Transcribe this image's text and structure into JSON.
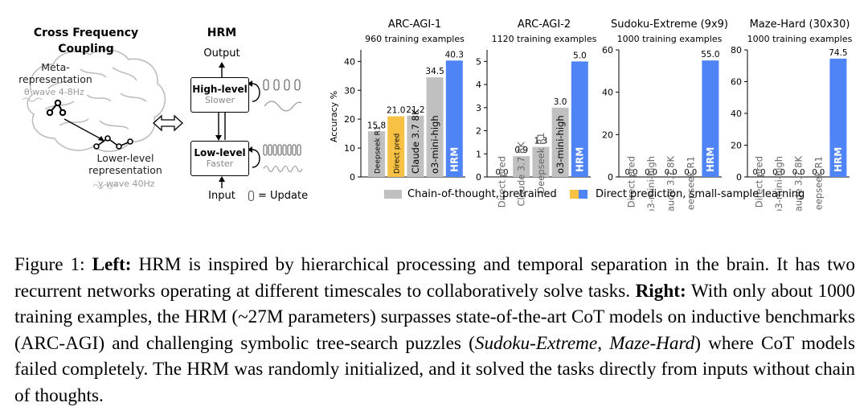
{
  "left_panel": {
    "cfc_title_line1": "Cross Frequency",
    "cfc_title_line2": "Coupling",
    "meta_line1": "Meta-",
    "meta_line2": "representation",
    "theta_label": "θ wave 4-8Hz",
    "lower_line1": "Lower-level",
    "lower_line2": "representation",
    "gamma_label": "γ wave 40Hz",
    "hrm_title": "HRM",
    "output_label": "Output",
    "input_label": "Input",
    "high_title": "High-level",
    "high_sub": "Slower",
    "low_title": "Low-level",
    "low_sub": "Faster",
    "update_legend": "= Update"
  },
  "colors": {
    "cot_gray": "#c0c0c0",
    "direct_gold": "#f7c244",
    "hrm_blue": "#4f84f6",
    "brain_gray": "#b8b8b8"
  },
  "chart_data": [
    {
      "type": "bar",
      "title": "ARC-AGI-1",
      "subtitle": "960 training examples",
      "ylabel": "Accuracy %",
      "ylim": [
        0,
        44
      ],
      "yticks": [
        "0",
        "10",
        "20",
        "30",
        "40"
      ],
      "categories": [
        "Deepseek R1",
        "Direct pred",
        "Claude 3.7 8K",
        "o3-mini-high",
        "HRM"
      ],
      "values": [
        15.8,
        21.0,
        21.2,
        34.5,
        40.3
      ],
      "value_labels": [
        "15.8",
        "21.0",
        "21.2",
        "34.5",
        "40.3"
      ],
      "groups": [
        "cot",
        "direct",
        "cot",
        "cot",
        "hrm"
      ]
    },
    {
      "type": "bar",
      "title": "ARC-AGI-2",
      "subtitle": "1120 training examples",
      "ylabel": "",
      "ylim": [
        0,
        5.5
      ],
      "yticks": [
        "0",
        "1",
        "2",
        "3",
        "4",
        "5"
      ],
      "categories": [
        "Direct pred",
        "Claude 3.7 8K",
        "Deepseek R1",
        "o3-mini-high",
        "HRM"
      ],
      "values": [
        0.0,
        0.9,
        1.3,
        3.0,
        5.0
      ],
      "value_labels": [
        "0.0",
        "0.9",
        "1.3",
        "3.0",
        "5.0"
      ],
      "groups": [
        "direct",
        "cot",
        "cot",
        "cot",
        "hrm"
      ]
    },
    {
      "type": "bar",
      "title": "Sudoku-Extreme (9x9)",
      "subtitle": "1000 training examples",
      "ylabel": "",
      "ylim": [
        0,
        60
      ],
      "yticks": [
        "0",
        "20",
        "40",
        "60"
      ],
      "categories": [
        "Direct pred",
        "o3-mini-high",
        "Claude 3.7 8K",
        "Deepseek R1",
        "HRM"
      ],
      "values": [
        0.0,
        0.0,
        0.0,
        0.0,
        55.0
      ],
      "value_labels": [
        "0.0",
        "0.0",
        "0.0",
        "0.0",
        "55.0"
      ],
      "groups": [
        "direct",
        "cot",
        "cot",
        "cot",
        "hrm"
      ]
    },
    {
      "type": "bar",
      "title": "Maze-Hard (30x30)",
      "subtitle": "1000 training examples",
      "ylabel": "",
      "ylim": [
        0,
        80
      ],
      "yticks": [
        "0",
        "20",
        "40",
        "60",
        "80"
      ],
      "categories": [
        "Direct pred",
        "o3-mini-high",
        "Claude 3.7 8K",
        "Deepseek R1",
        "HRM"
      ],
      "values": [
        0.0,
        0.0,
        0.0,
        0.0,
        74.5
      ],
      "value_labels": [
        "0.0",
        "0.0",
        "0.0",
        "0.0",
        "74.5"
      ],
      "groups": [
        "direct",
        "cot",
        "cot",
        "cot",
        "hrm"
      ]
    }
  ],
  "legend": {
    "cot": "Chain-of-thought, pretrained",
    "direct": "Direct prediction, small-sample learning"
  },
  "caption": {
    "label": "Figure 1:",
    "left_bold": "Left:",
    "left_text": "HRM is inspired by hierarchical processing and temporal separation in the brain. It has two recurrent networks operating at different timescales to collaboratively solve tasks.",
    "right_bold": "Right:",
    "right_text_1": "With only about 1000 training examples, the HRM (~27M parameters) surpasses state-of-the-art CoT models on inductive benchmarks (ARC-AGI) and challenging symbolic tree-search puzzles (",
    "italic_1": "Sudoku-Extreme",
    "sep": ", ",
    "italic_2": "Maze-Hard",
    "right_text_2": ") where CoT models failed completely.  The HRM was randomly initialized, and it solved the tasks directly from inputs without chain of thoughts."
  }
}
